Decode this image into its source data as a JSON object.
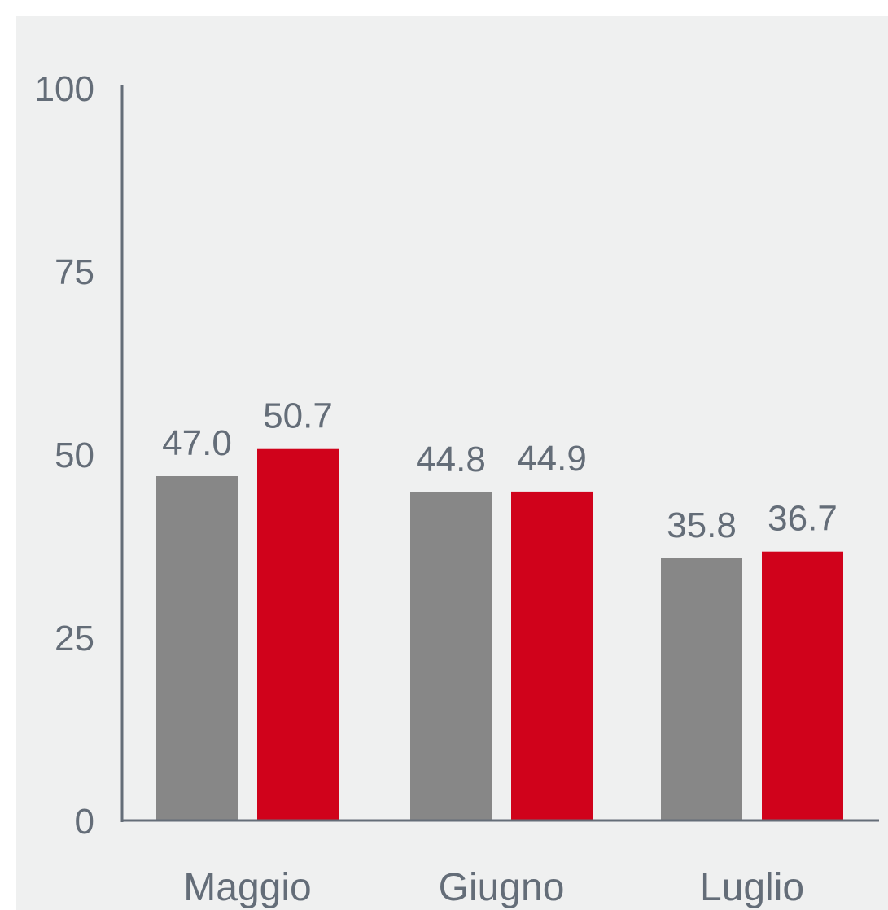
{
  "chart_data": {
    "type": "bar",
    "categories": [
      "Maggio",
      "Giugno",
      "Luglio"
    ],
    "series": [
      {
        "values": [
          47.0,
          44.8,
          35.8
        ],
        "color": "#878787"
      },
      {
        "values": [
          50.7,
          44.9,
          36.7
        ],
        "color": "#d0021b"
      }
    ],
    "data_labels": [
      [
        "47.0",
        "44.8",
        "35.8"
      ],
      [
        "50.7",
        "44.9",
        "36.7"
      ]
    ],
    "y_ticks": [
      0,
      25,
      50,
      75,
      100
    ],
    "ylim": [
      0,
      100
    ],
    "grid": false,
    "axis_color": "#646d78",
    "background_color": "#eff0f0",
    "title": "",
    "xlabel": "",
    "ylabel": ""
  }
}
